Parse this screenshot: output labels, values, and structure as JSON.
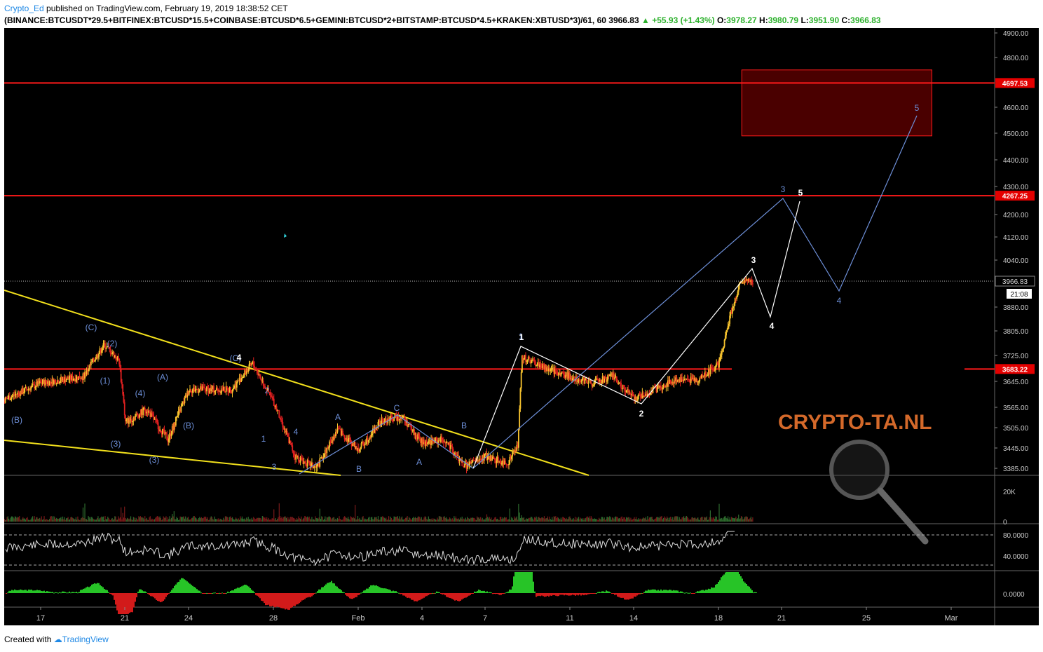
{
  "header": {
    "author": "Crypto_Ed",
    "published": "published on TradingView.com, February 19, 2019 18:38:52 CET",
    "symbol_line": "(BINANCE:BTCUSDT*29.5+BITFINEX:BTCUSD*15.5+COINBASE:BTCUSD*6.5+GEMINI:BTCUSD*2+BITSTAMP:BTCUSD*4.5+KRAKEN:XBTUSD*3)/61, 60",
    "last": "3966.83",
    "change": "▲ +55.93 (+1.43%)",
    "o_label": "O:",
    "o_value": "3978.27",
    "h_label": "H:",
    "h_value": "3980.79",
    "l_label": "L:",
    "l_value": "3951.90",
    "c_label": "C:",
    "c_value": "3966.83"
  },
  "footer": {
    "created": "Created with",
    "brand": "TradingView"
  },
  "watermark": "CRYPTO-TA.NL",
  "colors": {
    "up": "#f7c32e",
    "down": "#e02020",
    "level": "#ff1a1a",
    "wedge": "#f2e01c",
    "count_blue": "#6d8fd8",
    "count_white": "#ffffff",
    "zone": "#4a0000"
  },
  "chart_data": {
    "type": "candlestick",
    "interval": "60",
    "yaxis_ticks": [
      3385.0,
      3445.0,
      3505.0,
      3565.0,
      3645.0,
      3725.0,
      3805.0,
      3880.0,
      4040.0,
      4120.0,
      4200.0,
      4300.0,
      4400.0,
      4500.0,
      4600.0,
      4800.0,
      4900.0
    ],
    "yaxis_tick_labels": [
      "3385.00",
      "3445.00",
      "3505.00",
      "3565.00",
      "3645.00",
      "3725.00",
      "3805.00",
      "3880.00",
      "4040.00",
      "4120.00",
      "4200.00",
      "4300.00",
      "4400.00",
      "4500.00",
      "4600.00",
      "4800.00",
      "4900.00"
    ],
    "xaxis_ticks": [
      "17",
      "21",
      "24",
      "28",
      "Feb",
      "4",
      "7",
      "11",
      "14",
      "18",
      "21",
      "25",
      "Mar"
    ],
    "current_price": {
      "value": 3966.83,
      "label": "3966.83",
      "countdown": "21:08"
    },
    "horizontal_levels": [
      {
        "value": 4697.53,
        "label": "4697.53"
      },
      {
        "value": 4267.25,
        "label": "4267.25"
      },
      {
        "value": 3683.22,
        "label": "3683.22"
      }
    ],
    "target_zone": {
      "top": 4750,
      "bottom": 4490,
      "x_start": "Feb 19",
      "x_end": "Feb 28"
    },
    "candles_summary": {
      "start": "Jan 14",
      "end": "Feb 19",
      "low": 3375,
      "high": 3980.79
    },
    "key_points": [
      {
        "x": "Jan 14",
        "y": 3650
      },
      {
        "x": "Jan 15",
        "y": 3580
      },
      {
        "x": "Jan 17",
        "y": 3640
      },
      {
        "x": "Jan 19",
        "y": 3660
      },
      {
        "x": "Jan 20",
        "y": 3760
      },
      {
        "x": "Jan 20.7",
        "y": 3710
      },
      {
        "x": "Jan 21",
        "y": 3520
      },
      {
        "x": "Jan 22",
        "y": 3560
      },
      {
        "x": "Jan 23",
        "y": 3470
      },
      {
        "x": "Jan 24",
        "y": 3620
      },
      {
        "x": "Jan 26",
        "y": 3620
      },
      {
        "x": "Jan 27",
        "y": 3700
      },
      {
        "x": "Jan 28",
        "y": 3580
      },
      {
        "x": "Jan 29",
        "y": 3420
      },
      {
        "x": "Jan 30",
        "y": 3385
      },
      {
        "x": "Jan 31",
        "y": 3500
      },
      {
        "x": "Feb 1",
        "y": 3440
      },
      {
        "x": "Feb 2",
        "y": 3520
      },
      {
        "x": "Feb 3",
        "y": 3540
      },
      {
        "x": "Feb 4",
        "y": 3460
      },
      {
        "x": "Feb 5",
        "y": 3470
      },
      {
        "x": "Feb 6",
        "y": 3390
      },
      {
        "x": "Feb 7",
        "y": 3420
      },
      {
        "x": "Feb 8",
        "y": 3400
      },
      {
        "x": "Feb 8.5",
        "y": 3450
      },
      {
        "x": "Feb 8.7",
        "y": 3720
      },
      {
        "x": "Feb 10",
        "y": 3680
      },
      {
        "x": "Feb 12",
        "y": 3640
      },
      {
        "x": "Feb 13",
        "y": 3660
      },
      {
        "x": "Feb 14",
        "y": 3590
      },
      {
        "x": "Feb 15",
        "y": 3620
      },
      {
        "x": "Feb 16",
        "y": 3650
      },
      {
        "x": "Feb 17",
        "y": 3650
      },
      {
        "x": "Feb 18",
        "y": 3700
      },
      {
        "x": "Feb 18.5",
        "y": 3850
      },
      {
        "x": "Feb 19",
        "y": 3960
      },
      {
        "x": "Feb 19.6",
        "y": 3966.83
      }
    ],
    "wave_labels": {
      "blue": [
        "(B)",
        "(C)",
        "(2)",
        "(1)",
        "(3)",
        "(4)",
        "(A)",
        "(B)",
        "(3)",
        "(C)",
        "2",
        "1",
        "4",
        "3",
        "A",
        "B",
        "C",
        "A",
        "B",
        "1",
        "3",
        "4",
        "5"
      ],
      "white": [
        "4",
        "1",
        "2",
        "3",
        "4",
        "5"
      ]
    },
    "volume": {
      "tick_labels": [
        "20K",
        "0"
      ]
    },
    "rsi": {
      "tick_labels": [
        "80.0000",
        "40.0000"
      ],
      "upper": 80,
      "lower": 30
    },
    "oscillator": {
      "tick_labels": [
        "0.0000"
      ]
    }
  }
}
